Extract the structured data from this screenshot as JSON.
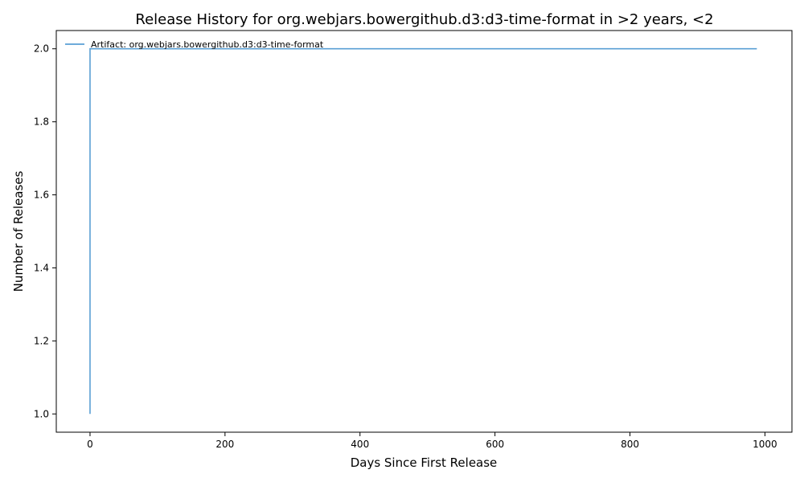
{
  "chart_data": {
    "type": "line",
    "title": "Release History for org.webjars.bowergithub.d3:d3-time-format in >2 years, <2",
    "xlabel": "Days Since First Release",
    "ylabel": "Number of Releases",
    "xlim": [
      -50,
      1040
    ],
    "ylim": [
      0.95,
      2.05
    ],
    "xticks": [
      0,
      200,
      400,
      600,
      800,
      1000
    ],
    "xtick_labels": [
      "0",
      "200",
      "400",
      "600",
      "800",
      "1000"
    ],
    "yticks": [
      1.0,
      1.2,
      1.4,
      1.6,
      1.8,
      2.0
    ],
    "ytick_labels": [
      "1.0",
      "1.2",
      "1.4",
      "1.6",
      "1.8",
      "2.0"
    ],
    "grid": false,
    "legend_position": "top-left",
    "series": [
      {
        "name": "Artifact: org.webjars.bowergithub.d3:d3-time-format",
        "color": "#5a9fd4",
        "x": [
          0,
          0,
          988
        ],
        "y": [
          1,
          2,
          2
        ]
      }
    ]
  }
}
